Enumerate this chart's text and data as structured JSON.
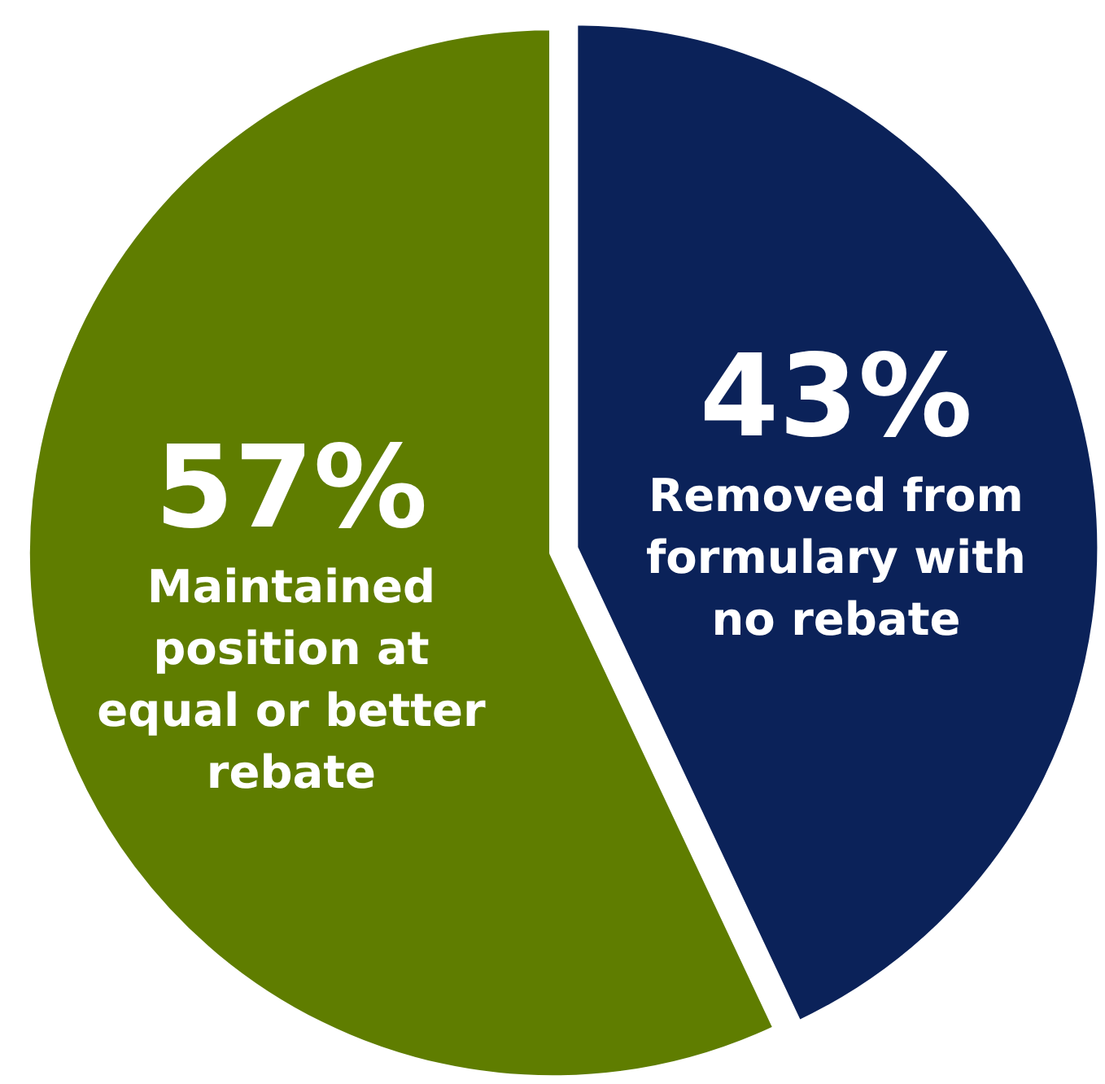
{
  "chart_data": {
    "type": "pie",
    "categories": [
      "Removed from formulary with no rebate",
      "Maintained position at equal or better rebate"
    ],
    "values": [
      43,
      57
    ],
    "colors": [
      "#0b2259",
      "#5f7d00"
    ],
    "value_labels": [
      "43%",
      "57%"
    ],
    "legend": false
  }
}
